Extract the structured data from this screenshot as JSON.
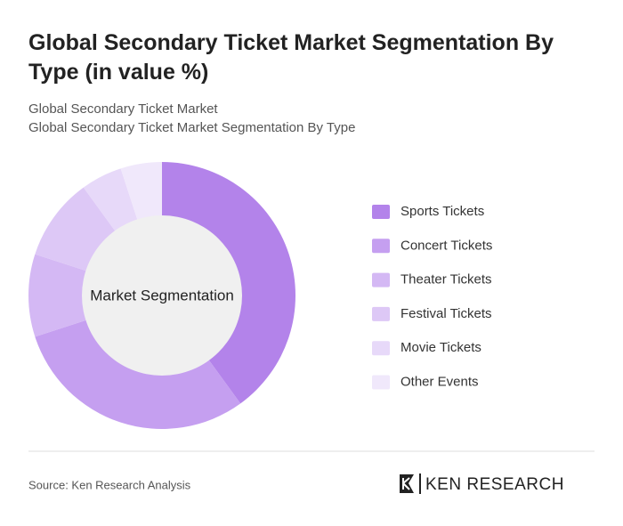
{
  "chart_data": {
    "type": "donut",
    "title": "Global Secondary Ticket Market Segmentation By Type (in value %)",
    "subtitles": [
      "Global Secondary Ticket Market",
      "Global Secondary Ticket Market Segmentation By Type"
    ],
    "center_label": "Market Segmentation",
    "categories": [
      "Sports Tickets",
      "Concert Tickets",
      "Theater Tickets",
      "Festival Tickets",
      "Movie Tickets",
      "Other Events"
    ],
    "values": [
      40,
      30,
      10,
      10,
      5,
      5
    ],
    "colors": [
      "#b383ea",
      "#c59ff0",
      "#d4b8f4",
      "#ddc8f6",
      "#e7d9f9",
      "#f0e8fb"
    ],
    "source": "Source: Ken Research Analysis",
    "brand": "KEN RESEARCH"
  }
}
